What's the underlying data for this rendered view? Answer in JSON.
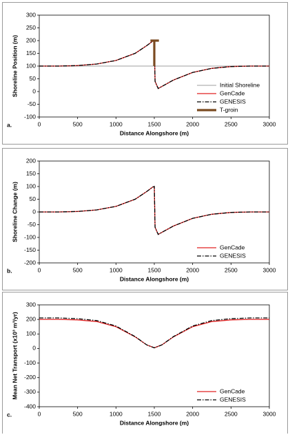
{
  "chart_data": [
    {
      "type": "line",
      "panel_label": "a.",
      "xlabel": "Distance Alongshore  (m)",
      "ylabel": "Shoreline Position (m)",
      "xlim": [
        0,
        3000
      ],
      "xticks": [
        0,
        500,
        1000,
        1500,
        2000,
        2500,
        3000
      ],
      "ylim": [
        -100,
        300
      ],
      "yticks": [
        -100,
        -50,
        0,
        50,
        100,
        150,
        200,
        250,
        300
      ],
      "legend_position": "lower right",
      "series": [
        {
          "name": "Initial Shoreline",
          "color": "#b0b0b0",
          "style": "solid",
          "x": [
            0,
            3000
          ],
          "values": [
            100,
            100
          ]
        },
        {
          "name": "GenCade",
          "color": "#e02020",
          "style": "solid",
          "x": [
            0,
            250,
            500,
            750,
            1000,
            1250,
            1400,
            1480,
            1500,
            1510,
            1550,
            1600,
            1750,
            2000,
            2250,
            2500,
            2750,
            3000
          ],
          "values": [
            100,
            100,
            102,
            108,
            122,
            150,
            180,
            198,
            200,
            40,
            12,
            20,
            45,
            75,
            91,
            98,
            100,
            100
          ]
        },
        {
          "name": "GENESIS",
          "color": "#000000",
          "style": "dashdot",
          "x": [
            0,
            250,
            500,
            750,
            1000,
            1250,
            1400,
            1480,
            1500,
            1510,
            1550,
            1600,
            1750,
            2000,
            2250,
            2500,
            2750,
            3000
          ],
          "values": [
            100,
            100,
            102,
            108,
            122,
            150,
            180,
            198,
            200,
            40,
            12,
            20,
            45,
            75,
            91,
            98,
            100,
            100
          ]
        },
        {
          "name": "T-groin",
          "color": "#7a4a20",
          "style": "thick",
          "x": [
            1500,
            1500,
            1450,
            1560
          ],
          "values": [
            100,
            200,
            200,
            200
          ]
        }
      ]
    },
    {
      "type": "line",
      "panel_label": "b.",
      "xlabel": "Distance Alongshore  (m)",
      "ylabel": "Shoreline Change (m)",
      "xlim": [
        0,
        3000
      ],
      "xticks": [
        0,
        500,
        1000,
        1500,
        2000,
        2500,
        3000
      ],
      "ylim": [
        -200,
        200
      ],
      "yticks": [
        -200,
        -150,
        -100,
        -50,
        0,
        50,
        100,
        150,
        200
      ],
      "legend_position": "lower right",
      "series": [
        {
          "name": "GenCade",
          "color": "#e02020",
          "style": "solid",
          "x": [
            0,
            250,
            500,
            750,
            1000,
            1250,
            1400,
            1480,
            1500,
            1510,
            1550,
            1600,
            1750,
            2000,
            2250,
            2500,
            2750,
            3000
          ],
          "values": [
            0,
            0,
            2,
            8,
            22,
            50,
            80,
            98,
            100,
            -60,
            -88,
            -80,
            -55,
            -25,
            -9,
            -2,
            0,
            0
          ]
        },
        {
          "name": "GENESIS",
          "color": "#000000",
          "style": "dashdot",
          "x": [
            0,
            250,
            500,
            750,
            1000,
            1250,
            1400,
            1480,
            1500,
            1510,
            1550,
            1600,
            1750,
            2000,
            2250,
            2500,
            2750,
            3000
          ],
          "values": [
            0,
            0,
            2,
            8,
            22,
            50,
            80,
            98,
            100,
            -60,
            -88,
            -80,
            -55,
            -25,
            -9,
            -2,
            0,
            0
          ]
        }
      ]
    },
    {
      "type": "line",
      "panel_label": "c.",
      "xlabel": "Distance Alongshore  (m)",
      "ylabel": "Mean Net Transport (x10³ m³/yr)",
      "xlim": [
        0,
        3000
      ],
      "xticks": [
        0,
        500,
        1000,
        1500,
        2000,
        2500,
        3000
      ],
      "ylim": [
        -400,
        300
      ],
      "yticks": [
        -400,
        -300,
        -200,
        -100,
        0,
        100,
        200,
        300
      ],
      "legend_position": "lower right",
      "series": [
        {
          "name": "GenCade",
          "color": "#e02020",
          "style": "solid",
          "x": [
            0,
            250,
            500,
            750,
            1000,
            1250,
            1400,
            1500,
            1600,
            1750,
            2000,
            2250,
            2500,
            2750,
            3000
          ],
          "values": [
            200,
            200,
            197,
            185,
            150,
            80,
            25,
            5,
            25,
            80,
            150,
            185,
            197,
            200,
            200
          ]
        },
        {
          "name": "GENESIS",
          "color": "#000000",
          "style": "dashdot",
          "x": [
            0,
            250,
            500,
            750,
            1000,
            1250,
            1400,
            1500,
            1600,
            1750,
            2000,
            2250,
            2500,
            2750,
            3000
          ],
          "values": [
            210,
            210,
            205,
            192,
            155,
            82,
            25,
            5,
            25,
            82,
            155,
            192,
            205,
            210,
            210
          ]
        }
      ]
    }
  ]
}
